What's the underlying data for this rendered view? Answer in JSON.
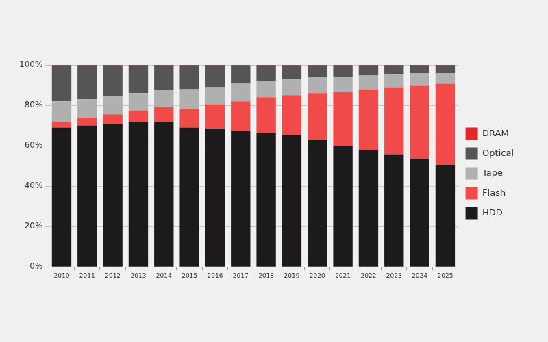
{
  "chart_data": {
    "type": "bar",
    "stacked": true,
    "grid": true,
    "legend": "right",
    "categories": [
      "2010",
      "2011",
      "2012",
      "2013",
      "2014",
      "2015",
      "2016",
      "2017",
      "2018",
      "2019",
      "2020",
      "2021",
      "2022",
      "2023",
      "2024",
      "2025"
    ],
    "series": [
      {
        "name": "HDD",
        "color": "#1c1a1a",
        "values": [
          69,
          70,
          70.5,
          71.8,
          71.8,
          69,
          68.5,
          67.5,
          66.3,
          65.3,
          63,
          60,
          58,
          55.8,
          53.7,
          50.6
        ]
      },
      {
        "name": "Flash",
        "color": "#f04a4a",
        "values": [
          2.8,
          4,
          5,
          5.7,
          7.2,
          9.3,
          12,
          14.5,
          17.7,
          19.7,
          23,
          26.5,
          30,
          33.2,
          36.3,
          40.1
        ]
      },
      {
        "name": "Tape",
        "color": "#b0b0b0",
        "values": [
          10.2,
          9,
          9,
          8.5,
          8.5,
          9.7,
          8.5,
          8.7,
          8,
          8,
          8,
          7.7,
          7,
          6.5,
          6.2,
          5.5
        ]
      },
      {
        "name": "Optical",
        "color": "#555555",
        "values": [
          17.5,
          16.5,
          15,
          13.5,
          12,
          11.5,
          10.5,
          8.8,
          7.5,
          6.5,
          5.5,
          5.3,
          4.5,
          4,
          3.3,
          3.3
        ]
      },
      {
        "name": "DRAM",
        "color": "#e3262a",
        "values": [
          0.5,
          0.5,
          0.5,
          0.5,
          0.5,
          0.5,
          0.5,
          0.5,
          0.5,
          0.5,
          0.5,
          0.5,
          0.5,
          0.5,
          0.5,
          0.5
        ]
      }
    ],
    "ylim": [
      0,
      100
    ],
    "yticks": [
      {
        "value": 0,
        "label": "0%"
      },
      {
        "value": 20,
        "label": "20%"
      },
      {
        "value": 40,
        "label": "40%"
      },
      {
        "value": 60,
        "label": "60%"
      },
      {
        "value": 80,
        "label": "80%"
      },
      {
        "value": 100,
        "label": "100%"
      }
    ]
  }
}
